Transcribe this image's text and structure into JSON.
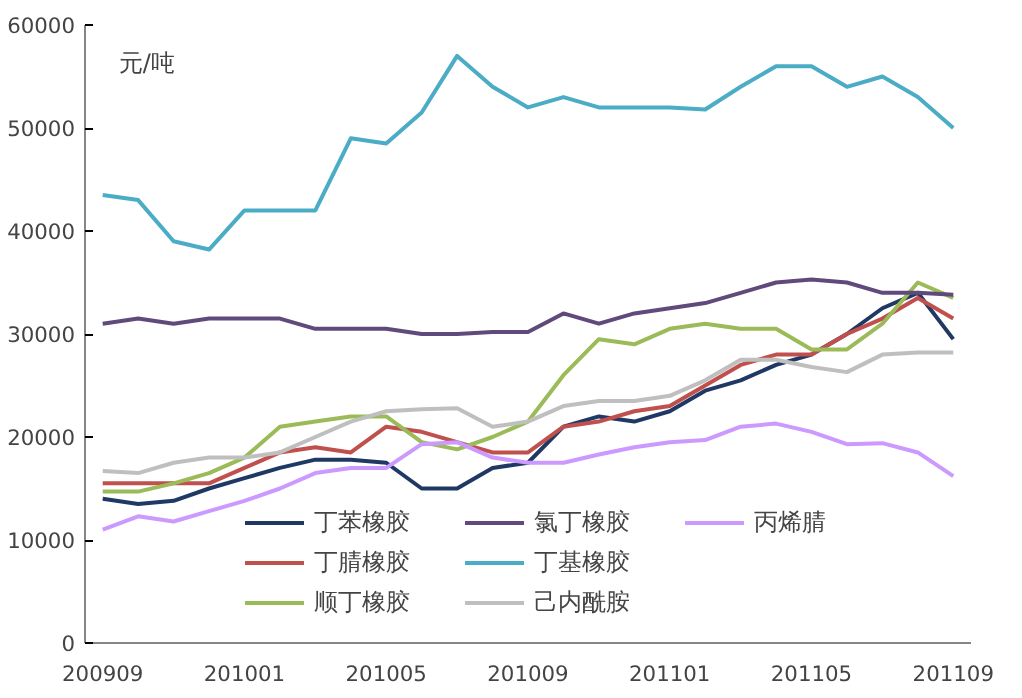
{
  "chart_data": {
    "type": "line",
    "ylabel": "元/吨",
    "categories": [
      "200909",
      null,
      null,
      null,
      "201001",
      null,
      null,
      null,
      "201005",
      null,
      null,
      null,
      "201009",
      null,
      null,
      null,
      "201101",
      null,
      null,
      null,
      "201105",
      null,
      null,
      null,
      "201109"
    ],
    "ylim": [
      0,
      60000
    ],
    "yticks": [
      0,
      10000,
      20000,
      30000,
      40000,
      50000,
      60000
    ],
    "grid": false,
    "legend": "bottom",
    "marker": "none",
    "line_style": "solid",
    "series": [
      {
        "name": "丁苯橡胶",
        "color": "#1f3864",
        "values": [
          14000,
          13500,
          13800,
          15000,
          16000,
          17000,
          17800,
          17800,
          17500,
          15000,
          15000,
          17000,
          17500,
          21000,
          22000,
          21500,
          22500,
          24500,
          25500,
          27000,
          28000,
          30000,
          32500,
          34000,
          29500
        ]
      },
      {
        "name": "丁腈橡胶",
        "color": "#c0504d",
        "values": [
          15500,
          15500,
          15500,
          15500,
          17000,
          18500,
          19000,
          18500,
          21000,
          20500,
          19500,
          18500,
          18500,
          21000,
          21500,
          22500,
          23000,
          25000,
          27000,
          28000,
          28000,
          30000,
          31500,
          33500,
          31500
        ]
      },
      {
        "name": "顺丁橡胶",
        "color": "#9bbb59",
        "values": [
          14700,
          14700,
          15500,
          16500,
          18000,
          21000,
          21500,
          22000,
          22000,
          19500,
          18800,
          20000,
          21500,
          26000,
          29500,
          29000,
          30500,
          31000,
          30500,
          30500,
          28500,
          28500,
          31000,
          35000,
          33500
        ]
      },
      {
        "name": "氯丁橡胶",
        "color": "#604a7b",
        "values": [
          31000,
          31500,
          31000,
          31500,
          31500,
          31500,
          30500,
          30500,
          30500,
          30000,
          30000,
          30200,
          30200,
          32000,
          31000,
          32000,
          32500,
          33000,
          34000,
          35000,
          35300,
          35000,
          34000,
          34000,
          33800
        ]
      },
      {
        "name": "丁基橡胶",
        "color": "#4bacc6",
        "values": [
          43500,
          43000,
          39000,
          38200,
          42000,
          42000,
          42000,
          49000,
          48500,
          51500,
          57000,
          54000,
          52000,
          53000,
          52000,
          52000,
          52000,
          51800,
          54000,
          56000,
          56000,
          54000,
          55000,
          53000,
          50000
        ]
      },
      {
        "name": "己内酰胺",
        "color": "#bfbfbf",
        "values": [
          16700,
          16500,
          17500,
          18000,
          18000,
          18500,
          20000,
          21500,
          22500,
          22700,
          22800,
          21000,
          21500,
          23000,
          23500,
          23500,
          24000,
          25500,
          27500,
          27500,
          26800,
          26300,
          28000,
          28200,
          28200
        ]
      },
      {
        "name": "丙烯腈",
        "color": "#cc99ff",
        "values": [
          11000,
          12300,
          11800,
          12800,
          13800,
          15000,
          16500,
          17000,
          17000,
          19300,
          19500,
          18000,
          17500,
          17500,
          18300,
          19000,
          19500,
          19700,
          21000,
          21300,
          20500,
          19300,
          19400,
          18500,
          16200
        ]
      }
    ]
  }
}
